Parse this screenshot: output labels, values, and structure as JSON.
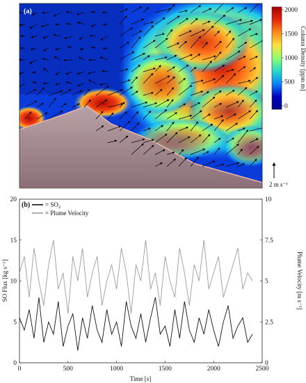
{
  "panel_a": {
    "label": "(a)",
    "colorbar": {
      "title": "Column Density [ppm m]",
      "ticks": [
        "2000",
        "1500",
        "1000",
        "500",
        "0"
      ],
      "stops": [
        "#a50000",
        "#e8250c",
        "#ff8c1a",
        "#ffe23c",
        "#8cff6e",
        "#25dcc8",
        "#0a84ff",
        "#0000c0",
        "#00008f"
      ]
    },
    "scale_label": "2 m s⁻¹"
  },
  "panel_b": {
    "label": "(b)",
    "legend": {
      "so2": "= SO",
      "so2_sub": "2",
      "velocity": "= Plume Velocity"
    },
    "xlabel": "Time [s]",
    "ylabel_left": "SO  Flux [kg s⁻¹]",
    "ylabel_right": "Plume Velocity [m s⁻¹]"
  },
  "chart_data": {
    "type": "line",
    "title": "",
    "xlabel": "Time [s]",
    "ylabel": "SO  Flux [kg s⁻¹]",
    "ylabel_right": "Plume Velocity [m s⁻¹]",
    "xlim": [
      0,
      2500
    ],
    "ylim": [
      0,
      20
    ],
    "ylim_right": [
      0,
      10
    ],
    "x_ticks": [
      "0",
      "500",
      "1000",
      "1500",
      "2000",
      "2500"
    ],
    "y_ticks": [
      "0",
      "5",
      "10",
      "15",
      "20"
    ],
    "y_ticks_right": [
      "0",
      "2.5",
      "5",
      "7.5",
      "10"
    ],
    "grid": false,
    "legend_position": "top-left",
    "colors": {
      "so2": "#111111",
      "velocity": "#9a9a9a"
    },
    "x": [
      0,
      50,
      100,
      150,
      200,
      250,
      300,
      350,
      400,
      450,
      500,
      550,
      600,
      650,
      700,
      750,
      800,
      850,
      900,
      950,
      1000,
      1050,
      1100,
      1150,
      1200,
      1250,
      1300,
      1350,
      1400,
      1450,
      1500,
      1550,
      1600,
      1650,
      1700,
      1750,
      1800,
      1850,
      1900,
      1950,
      2000,
      2050,
      2100,
      2150,
      2200,
      2250,
      2300,
      2350,
      2400
    ],
    "series": [
      {
        "name": "SO2",
        "axis": "left",
        "values": [
          5.5,
          4.0,
          6.5,
          3.0,
          8.0,
          2.5,
          5.0,
          3.5,
          7.5,
          2.0,
          4.5,
          6.0,
          1.5,
          5.5,
          3.0,
          7.0,
          4.0,
          2.5,
          6.5,
          3.5,
          5.0,
          2.0,
          7.5,
          4.5,
          3.0,
          6.0,
          2.5,
          5.5,
          8.0,
          3.5,
          4.5,
          2.0,
          6.5,
          3.0,
          7.5,
          4.0,
          2.5,
          5.5,
          3.5,
          6.5,
          4.0,
          2.0,
          5.0,
          7.0,
          3.0,
          4.5,
          5.5,
          2.5,
          3.5
        ]
      },
      {
        "name": "Plume Velocity",
        "axis": "right",
        "values": [
          5.5,
          6.5,
          4.0,
          7.0,
          5.0,
          3.5,
          6.0,
          7.5,
          4.5,
          5.5,
          3.0,
          6.5,
          5.0,
          7.0,
          4.0,
          5.5,
          6.5,
          3.5,
          5.0,
          6.0,
          4.5,
          7.0,
          5.5,
          3.0,
          6.0,
          5.0,
          7.5,
          4.5,
          5.5,
          3.5,
          6.5,
          5.0,
          4.0,
          7.0,
          5.5,
          3.5,
          6.0,
          5.0,
          7.5,
          4.5,
          5.5,
          6.5,
          4.0,
          5.0,
          6.0,
          7.0,
          4.5,
          5.5,
          5.0
        ]
      }
    ]
  }
}
